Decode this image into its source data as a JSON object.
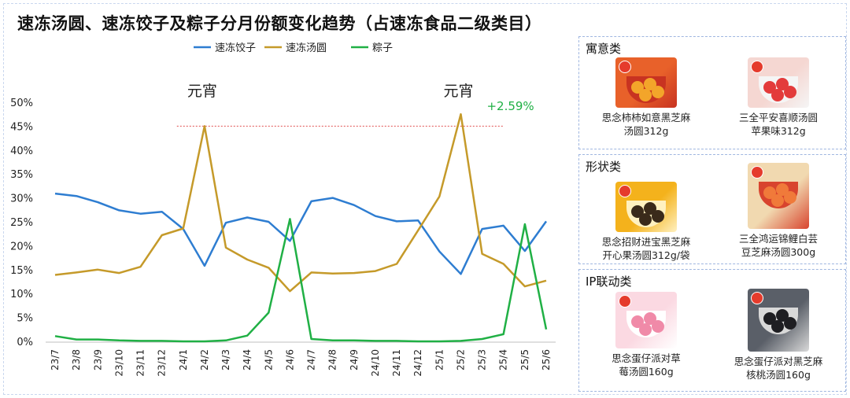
{
  "title": "速冻汤圆、速冻饺子及粽子分月份额变化趋势（占速冻食品二级类目）",
  "chart_data": {
    "type": "line",
    "categories": [
      "23/7",
      "23/8",
      "23/9",
      "23/10",
      "23/11",
      "23/12",
      "24/1",
      "24/2",
      "24/3",
      "24/4",
      "24/5",
      "24/6",
      "24/7",
      "24/8",
      "24/9",
      "24/10",
      "24/11",
      "24/12",
      "25/1",
      "25/2",
      "25/3",
      "25/4",
      "25/5",
      "25/6"
    ],
    "y_ticks": [
      "0%",
      "5%",
      "10%",
      "15%",
      "20%",
      "25%",
      "30%",
      "35%",
      "40%",
      "45%",
      "50%"
    ],
    "ylim": [
      0,
      50
    ],
    "grid": false,
    "legend_position": "top-center",
    "series": [
      {
        "name": "速冻饺子",
        "color": "#2e7dd1",
        "values": [
          30.9,
          30.4,
          29.1,
          27.4,
          26.7,
          27.1,
          23.5,
          15.8,
          24.8,
          25.9,
          25.0,
          21.0,
          29.3,
          30.0,
          28.5,
          26.2,
          25.1,
          25.3,
          18.8,
          14.1,
          23.5,
          24.2,
          18.9,
          25.1
        ]
      },
      {
        "name": "速冻汤圆",
        "color": "#c59a2a",
        "values": [
          13.9,
          14.4,
          15.0,
          14.3,
          15.6,
          22.2,
          23.6,
          45.0,
          19.6,
          17.1,
          15.4,
          10.5,
          14.4,
          14.2,
          14.3,
          14.7,
          16.2,
          23.2,
          30.3,
          47.5,
          18.3,
          16.2,
          11.5,
          12.7
        ]
      },
      {
        "name": "粽子",
        "color": "#20b045",
        "values": [
          1.1,
          0.4,
          0.4,
          0.2,
          0.1,
          0.1,
          0.0,
          0.0,
          0.2,
          1.2,
          6.0,
          25.6,
          0.5,
          0.2,
          0.2,
          0.1,
          0.1,
          0.0,
          0.0,
          0.1,
          0.5,
          1.5,
          24.5,
          2.5
        ]
      }
    ],
    "annotations": [
      {
        "text": "元宵",
        "category": "24/2"
      },
      {
        "text": "元宵",
        "category": "25/2"
      },
      {
        "text": "+2.59%",
        "category": "25/2",
        "color": "#20b045"
      }
    ],
    "reference_line": {
      "value": 45,
      "from": "24/1",
      "to": "25/4",
      "color": "#e05050"
    }
  },
  "panels": [
    {
      "title": "寓意类",
      "products": [
        {
          "name_lines": [
            "思念柿柿如意黑芝麻",
            "汤圆312g"
          ],
          "colors": [
            "#e8612a",
            "#f3a52a",
            "#c83321"
          ]
        },
        {
          "name_lines": [
            "三全平安喜顺汤圆",
            "苹果味312g"
          ],
          "colors": [
            "#f5d7d2",
            "#e33b3b",
            "#f5f5f5"
          ]
        }
      ]
    },
    {
      "title": "形状类",
      "products": [
        {
          "name_lines": [
            "思念招财进宝黑芝麻",
            "开心果汤圆312g/袋"
          ],
          "colors": [
            "#f4b21c",
            "#3a2a1a",
            "#fff1c0"
          ]
        },
        {
          "name_lines": [
            "三全鸿运锦鲤白芸",
            "豆芝麻汤圆300g"
          ],
          "colors": [
            "#f1d9b0",
            "#f07a3a",
            "#d8442e"
          ]
        }
      ]
    },
    {
      "title": "IP联动类",
      "products": [
        {
          "name_lines": [
            "思念蛋仔派对草",
            "莓汤圆160g"
          ],
          "colors": [
            "#fbd9e2",
            "#f08aa8",
            "#ffffff"
          ]
        },
        {
          "name_lines": [
            "思念蛋仔派对黑芝麻",
            "核桃汤圆160g"
          ],
          "colors": [
            "#5a5f68",
            "#1e1e22",
            "#d9d9d9"
          ]
        }
      ]
    }
  ]
}
